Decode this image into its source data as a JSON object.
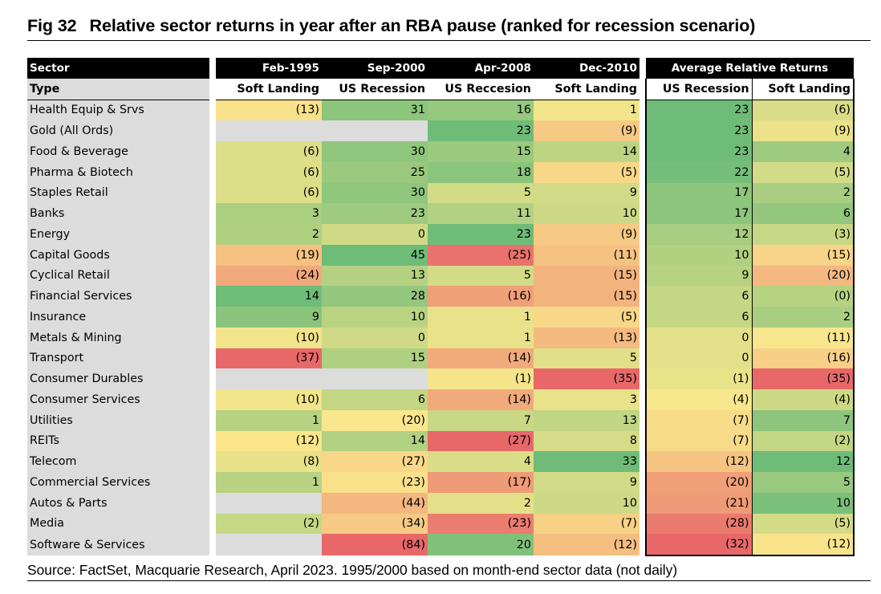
{
  "figure": {
    "number": "Fig 32",
    "title": "Relative sector returns in year after an RBA pause (ranked for recession scenario)",
    "source": "Source: FactSet, Macquarie Research, April 2023. 1995/2000 based on month-end sector data (not daily)"
  },
  "header": {
    "sector_label": "Sector",
    "type_label": "Type",
    "periods": [
      "Feb-1995",
      "Sep-2000",
      "Apr-2008",
      "Dec-2010"
    ],
    "period_types": [
      "Soft Landing",
      "US Recession",
      "US Reccesion",
      "Soft Landing"
    ],
    "average_label": "Average Relative Returns",
    "average_types": [
      "US Recession",
      "Soft Landing"
    ]
  },
  "colors": {
    "scale_low": "#e8686a",
    "scale_mid": "#fae78c",
    "scale_high": "#6fbc78",
    "blank": "#dcdcdc",
    "header_bg": "#000000",
    "label_bg": "#dcdcdc"
  },
  "chart_data": {
    "type": "table",
    "title": "Relative sector returns in year after an RBA pause (ranked for recession scenario)",
    "columns": [
      "Feb-1995",
      "Sep-2000",
      "Apr-2008",
      "Dec-2010",
      "US Recession",
      "Soft Landing"
    ],
    "column_types": [
      "Soft Landing",
      "US Recession",
      "US Reccesion",
      "Soft Landing",
      "US Recession",
      "Soft Landing"
    ],
    "rows": [
      {
        "sector": "Health Equip & Srvs",
        "values": [
          -13,
          31,
          16,
          1,
          23,
          -6
        ]
      },
      {
        "sector": "Gold (All Ords)",
        "values": [
          null,
          null,
          23,
          -9,
          23,
          -9
        ]
      },
      {
        "sector": "Food & Beverage",
        "values": [
          -6,
          30,
          15,
          14,
          23,
          4
        ]
      },
      {
        "sector": "Pharma & Biotech",
        "values": [
          -6,
          25,
          18,
          -5,
          22,
          -5
        ]
      },
      {
        "sector": "Staples Retail",
        "values": [
          -6,
          30,
          5,
          9,
          17,
          2
        ]
      },
      {
        "sector": "Banks",
        "values": [
          3,
          23,
          11,
          10,
          17,
          6
        ]
      },
      {
        "sector": "Energy",
        "values": [
          2,
          0,
          23,
          -9,
          12,
          -3
        ]
      },
      {
        "sector": "Capital Goods",
        "values": [
          -19,
          45,
          -25,
          -11,
          10,
          -15
        ]
      },
      {
        "sector": "Cyclical Retail",
        "values": [
          -24,
          13,
          5,
          -15,
          9,
          -20
        ]
      },
      {
        "sector": "Financial Services",
        "values": [
          14,
          28,
          -16,
          -15,
          6,
          0
        ]
      },
      {
        "sector": "Insurance",
        "values": [
          9,
          10,
          1,
          -5,
          6,
          2
        ]
      },
      {
        "sector": "Metals & Mining",
        "values": [
          -10,
          0,
          1,
          -13,
          0,
          -11
        ]
      },
      {
        "sector": "Transport",
        "values": [
          -37,
          15,
          -14,
          5,
          0,
          -16
        ]
      },
      {
        "sector": "Consumer Durables",
        "values": [
          null,
          null,
          -1,
          -35,
          -1,
          -35
        ]
      },
      {
        "sector": "Consumer Services",
        "values": [
          -10,
          6,
          -14,
          3,
          -4,
          -4
        ]
      },
      {
        "sector": "Utilities",
        "values": [
          1,
          -20,
          7,
          13,
          -7,
          7
        ]
      },
      {
        "sector": "REITs",
        "values": [
          -12,
          14,
          -27,
          8,
          -7,
          -2
        ]
      },
      {
        "sector": "Telecom",
        "values": [
          -8,
          -27,
          4,
          33,
          -12,
          12
        ]
      },
      {
        "sector": "Commercial Services",
        "values": [
          1,
          -23,
          -17,
          9,
          -20,
          5
        ]
      },
      {
        "sector": "Autos & Parts",
        "values": [
          null,
          -44,
          2,
          10,
          -21,
          10
        ]
      },
      {
        "sector": "Media",
        "values": [
          -2,
          -34,
          -23,
          -7,
          -28,
          -5
        ]
      },
      {
        "sector": "Software & Services",
        "values": [
          null,
          -84,
          20,
          -12,
          -32,
          -12
        ]
      }
    ],
    "display": [
      [
        "(13)",
        "31",
        "16",
        "1",
        "23",
        "(6)"
      ],
      [
        "",
        "",
        "23",
        "(9)",
        "23",
        "(9)"
      ],
      [
        "(6)",
        "30",
        "15",
        "14",
        "23",
        "4"
      ],
      [
        "(6)",
        "25",
        "18",
        "(5)",
        "22",
        "(5)"
      ],
      [
        "(6)",
        "30",
        "5",
        "9",
        "17",
        "2"
      ],
      [
        "3",
        "23",
        "11",
        "10",
        "17",
        "6"
      ],
      [
        "2",
        "0",
        "23",
        "(9)",
        "12",
        "(3)"
      ],
      [
        "(19)",
        "45",
        "(25)",
        "(11)",
        "10",
        "(15)"
      ],
      [
        "(24)",
        "13",
        "5",
        "(15)",
        "9",
        "(20)"
      ],
      [
        "14",
        "28",
        "(16)",
        "(15)",
        "6",
        "(0)"
      ],
      [
        "9",
        "10",
        "1",
        "(5)",
        "6",
        "2"
      ],
      [
        "(10)",
        "0",
        "1",
        "(13)",
        "0",
        "(11)"
      ],
      [
        "(37)",
        "15",
        "(14)",
        "5",
        "0",
        "(16)"
      ],
      [
        "",
        "",
        "(1)",
        "(35)",
        "(1)",
        "(35)"
      ],
      [
        "(10)",
        "6",
        "(14)",
        "3",
        "(4)",
        "(4)"
      ],
      [
        "1",
        "(20)",
        "7",
        "13",
        "(7)",
        "7"
      ],
      [
        "(12)",
        "14",
        "(27)",
        "8",
        "(7)",
        "(2)"
      ],
      [
        "(8)",
        "(27)",
        "4",
        "33",
        "(12)",
        "12"
      ],
      [
        "1",
        "(23)",
        "(17)",
        "9",
        "(20)",
        "5"
      ],
      [
        "",
        "(44)",
        "2",
        "10",
        "(21)",
        "10"
      ],
      [
        "(2)",
        "(34)",
        "(23)",
        "(7)",
        "(28)",
        "(5)"
      ],
      [
        "",
        "(84)",
        "20",
        "(12)",
        "(32)",
        "(12)"
      ]
    ]
  }
}
